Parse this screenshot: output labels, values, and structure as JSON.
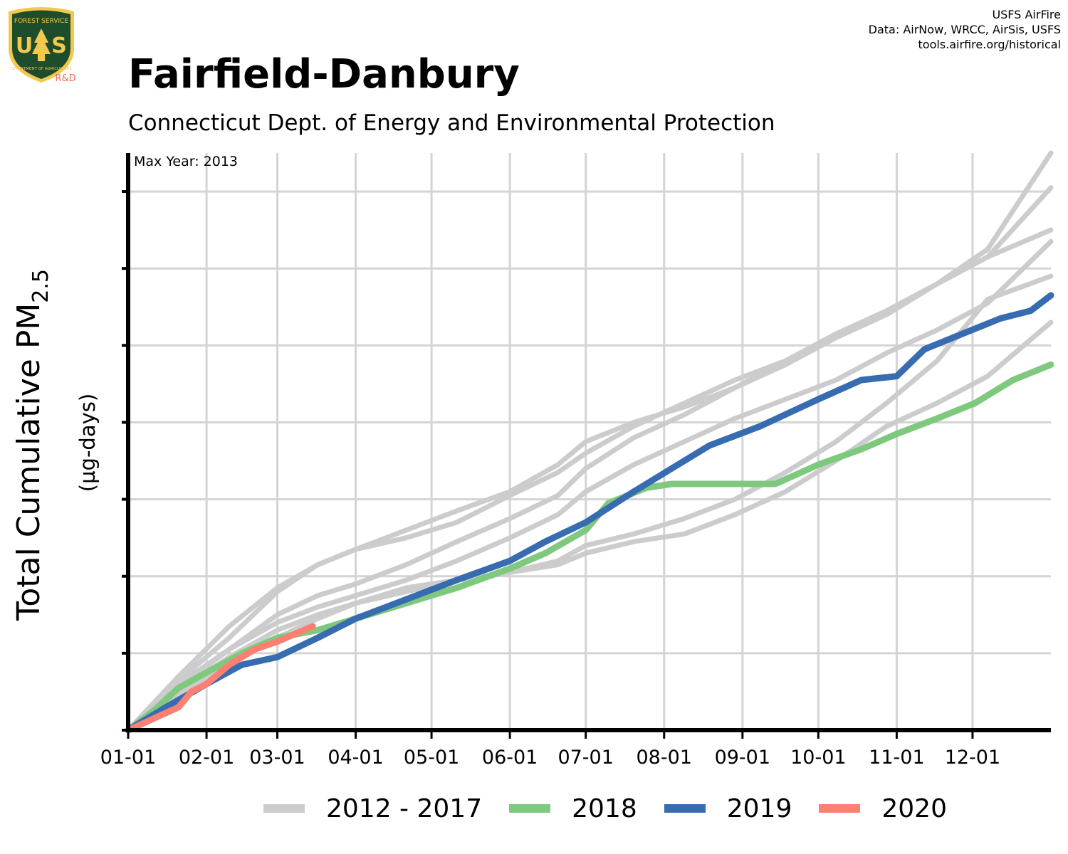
{
  "header": {
    "logo_text": [
      "FOREST SERVICE",
      "U",
      "S",
      "DEPARTMENT OF AGRICULTURE"
    ],
    "logo_badge": "R&D",
    "credits": [
      "USFS AirFire",
      "Data: AirNow, WRCC, AirSis, USFS",
      "tools.airfire.org/historical"
    ],
    "title": "Fairfield-Danbury",
    "subtitle": "Connecticut Dept. of Energy and Environmental Protection"
  },
  "colors": {
    "historical": "#cccccc",
    "y2018": "#7fc97f",
    "y2019": "#386cb0",
    "y2020": "#fb8072",
    "logo_green": "#1e4d2b",
    "logo_gold": "#f2c94c",
    "badge_red": "#f26b5b"
  },
  "chart_data": {
    "type": "line",
    "title": "Fairfield-Danbury",
    "subtitle": "Connecticut Dept. of Energy and Environmental Protection",
    "ylabel_main": "Total Cumulative PM",
    "ylabel_sub": "2.5",
    "ylabel_unit": "(µg-days)",
    "annotation": "Max Year: 2013",
    "x_tick_labels": [
      "01-01",
      "02-01",
      "03-01",
      "04-01",
      "05-01",
      "06-01",
      "07-01",
      "08-01",
      "09-01",
      "10-01",
      "11-01",
      "12-01"
    ],
    "x_tick_days": [
      0,
      31,
      59,
      90,
      120,
      151,
      181,
      212,
      243,
      273,
      304,
      334
    ],
    "xlim": [
      0,
      365
    ],
    "ylim": [
      0,
      7.5
    ],
    "y_tick_labels_shown": false,
    "grid": true,
    "legend_position": "bottom",
    "series": [
      {
        "name": "2012 - 2017",
        "group": "historical",
        "x": [
          0,
          20,
          40,
          59,
          75,
          90,
          110,
          130,
          151,
          170,
          181,
          200,
          220,
          240,
          260,
          280,
          300,
          320,
          340,
          365
        ],
        "y": [
          0,
          0.7,
          1.35,
          1.85,
          2.15,
          2.35,
          2.6,
          2.85,
          3.1,
          3.45,
          3.75,
          4.0,
          4.2,
          4.45,
          4.75,
          5.1,
          5.45,
          5.8,
          6.15,
          6.5
        ]
      },
      {
        "name": "2012 - 2017",
        "group": "historical",
        "x": [
          0,
          20,
          40,
          59,
          75,
          90,
          110,
          130,
          151,
          170,
          181,
          200,
          220,
          240,
          260,
          280,
          300,
          320,
          340,
          365
        ],
        "y": [
          0,
          0.65,
          1.2,
          1.8,
          2.15,
          2.35,
          2.5,
          2.7,
          3.05,
          3.35,
          3.6,
          3.95,
          4.25,
          4.55,
          4.8,
          5.1,
          5.4,
          5.8,
          6.25,
          7.5
        ]
      },
      {
        "name": "2012 - 2017",
        "group": "historical",
        "x": [
          0,
          20,
          40,
          59,
          75,
          90,
          110,
          130,
          151,
          170,
          181,
          200,
          220,
          240,
          260,
          280,
          300,
          320,
          340,
          365
        ],
        "y": [
          0,
          0.55,
          1.05,
          1.5,
          1.75,
          1.9,
          2.15,
          2.45,
          2.75,
          3.05,
          3.4,
          3.8,
          4.1,
          4.45,
          4.8,
          5.15,
          5.45,
          5.8,
          6.15,
          7.05
        ]
      },
      {
        "name": "2012 - 2017",
        "group": "historical",
        "x": [
          0,
          20,
          40,
          59,
          75,
          90,
          110,
          130,
          151,
          170,
          181,
          200,
          220,
          240,
          260,
          280,
          300,
          320,
          340,
          365
        ],
        "y": [
          0,
          0.6,
          1.05,
          1.4,
          1.6,
          1.75,
          1.95,
          2.2,
          2.5,
          2.8,
          3.1,
          3.45,
          3.75,
          4.05,
          4.3,
          4.55,
          4.9,
          5.2,
          5.55,
          6.35
        ]
      },
      {
        "name": "2012 - 2017",
        "group": "historical",
        "x": [
          0,
          20,
          40,
          59,
          75,
          90,
          110,
          130,
          151,
          170,
          181,
          200,
          220,
          240,
          260,
          280,
          300,
          320,
          340,
          365
        ],
        "y": [
          0,
          0.5,
          0.95,
          1.3,
          1.5,
          1.65,
          1.8,
          1.95,
          2.05,
          2.2,
          2.4,
          2.55,
          2.75,
          3.0,
          3.35,
          3.75,
          4.25,
          4.8,
          5.6,
          5.9
        ]
      },
      {
        "name": "2012 - 2017",
        "group": "historical",
        "x": [
          0,
          20,
          40,
          59,
          75,
          90,
          110,
          130,
          151,
          170,
          181,
          200,
          220,
          240,
          260,
          280,
          300,
          320,
          340,
          365
        ],
        "y": [
          0,
          0.45,
          0.85,
          1.2,
          1.45,
          1.65,
          1.85,
          1.95,
          2.05,
          2.15,
          2.3,
          2.45,
          2.55,
          2.8,
          3.1,
          3.5,
          3.95,
          4.25,
          4.6,
          5.3
        ]
      },
      {
        "name": "2018",
        "group": "y2018",
        "x": [
          0,
          10,
          20,
          31,
          45,
          59,
          75,
          90,
          110,
          130,
          151,
          165,
          181,
          190,
          205,
          215,
          230,
          250,
          256,
          273,
          290,
          304,
          320,
          335,
          350,
          365
        ],
        "y": [
          0,
          0.25,
          0.55,
          0.75,
          1.0,
          1.2,
          1.3,
          1.45,
          1.65,
          1.85,
          2.1,
          2.3,
          2.6,
          2.95,
          3.15,
          3.2,
          3.2,
          3.2,
          3.2,
          3.45,
          3.65,
          3.85,
          4.05,
          4.25,
          4.55,
          4.75
        ]
      },
      {
        "name": "2019",
        "group": "y2019",
        "x": [
          0,
          15,
          31,
          45,
          59,
          75,
          90,
          110,
          130,
          151,
          165,
          181,
          200,
          215,
          230,
          250,
          273,
          290,
          304,
          315,
          330,
          345,
          357,
          365
        ],
        "y": [
          0,
          0.3,
          0.6,
          0.85,
          0.95,
          1.2,
          1.45,
          1.7,
          1.95,
          2.2,
          2.45,
          2.7,
          3.1,
          3.4,
          3.7,
          3.95,
          4.3,
          4.55,
          4.6,
          4.95,
          5.15,
          5.35,
          5.45,
          5.65
        ]
      },
      {
        "name": "2020",
        "group": "y2020",
        "x": [
          0,
          10,
          20,
          25,
          31,
          40,
          50,
          59,
          66,
          73
        ],
        "y": [
          0,
          0.15,
          0.3,
          0.5,
          0.6,
          0.85,
          1.05,
          1.15,
          1.25,
          1.35
        ]
      }
    ]
  },
  "legend": [
    {
      "label": "2012 - 2017",
      "color": "#cccccc"
    },
    {
      "label": "2018",
      "color": "#7fc97f"
    },
    {
      "label": "2019",
      "color": "#386cb0"
    },
    {
      "label": "2020",
      "color": "#fb8072"
    }
  ]
}
